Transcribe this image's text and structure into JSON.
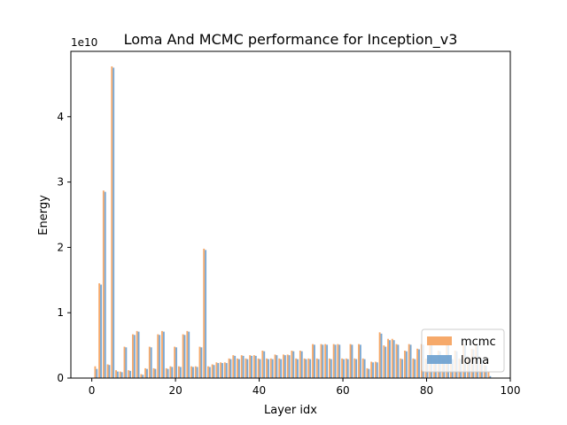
{
  "chart_data": {
    "type": "bar",
    "title": "Loma And MCMC performance for Inception_v3",
    "xlabel": "Layer idx",
    "ylabel": "Energy",
    "y_offset_label": "1e10",
    "xlim": [
      -5,
      100
    ],
    "ylim": [
      0,
      5
    ],
    "x_ticks": [
      0,
      20,
      40,
      60,
      80,
      100
    ],
    "y_ticks": [
      0,
      1,
      2,
      3,
      4
    ],
    "grid": false,
    "legend_position": "lower-right",
    "x": [
      1,
      2,
      3,
      4,
      5,
      6,
      7,
      8,
      9,
      10,
      11,
      12,
      13,
      14,
      15,
      16,
      17,
      18,
      19,
      20,
      21,
      22,
      23,
      24,
      25,
      26,
      27,
      28,
      29,
      30,
      31,
      32,
      33,
      34,
      35,
      36,
      37,
      38,
      39,
      40,
      41,
      42,
      43,
      44,
      45,
      46,
      47,
      48,
      49,
      50,
      51,
      52,
      53,
      54,
      55,
      56,
      57,
      58,
      59,
      60,
      61,
      62,
      63,
      64,
      65,
      66,
      67,
      68,
      69,
      70,
      71,
      72,
      73,
      74,
      75,
      76,
      77,
      78,
      79,
      80,
      81,
      82,
      83,
      84,
      85,
      86,
      87,
      88,
      89,
      90,
      91,
      92,
      93,
      94,
      95
    ],
    "series": [
      {
        "name": "mcmc",
        "color": "#f5a05a",
        "values": [
          0.18,
          1.45,
          2.87,
          0.21,
          4.77,
          0.12,
          0.1,
          0.48,
          0.12,
          0.67,
          0.72,
          0.06,
          0.15,
          0.48,
          0.15,
          0.67,
          0.72,
          0.15,
          0.18,
          0.48,
          0.18,
          0.67,
          0.72,
          0.18,
          0.18,
          0.48,
          1.98,
          0.18,
          0.21,
          0.24,
          0.24,
          0.24,
          0.3,
          0.35,
          0.3,
          0.35,
          0.3,
          0.35,
          0.35,
          0.3,
          0.42,
          0.3,
          0.3,
          0.36,
          0.3,
          0.36,
          0.36,
          0.42,
          0.3,
          0.42,
          0.3,
          0.3,
          0.52,
          0.3,
          0.52,
          0.52,
          0.3,
          0.52,
          0.52,
          0.3,
          0.3,
          0.52,
          0.3,
          0.52,
          0.3,
          0.15,
          0.25,
          0.25,
          0.7,
          0.5,
          0.6,
          0.6,
          0.52,
          0.3,
          0.42,
          0.52,
          0.3,
          0.45,
          0.52,
          0.3,
          0.52,
          0.3,
          0.42,
          0.3,
          0.52,
          0.3,
          0.42,
          0.3,
          0.52,
          0.3,
          0.45,
          0.52,
          0.3,
          0.2,
          0.1
        ]
      },
      {
        "name": "loma",
        "color": "#6a9fcf",
        "values": [
          0.14,
          1.43,
          2.85,
          0.2,
          4.75,
          0.1,
          0.09,
          0.47,
          0.11,
          0.66,
          0.71,
          0.05,
          0.14,
          0.47,
          0.14,
          0.66,
          0.71,
          0.14,
          0.17,
          0.47,
          0.17,
          0.66,
          0.71,
          0.17,
          0.17,
          0.47,
          1.96,
          0.17,
          0.2,
          0.23,
          0.23,
          0.23,
          0.29,
          0.34,
          0.29,
          0.34,
          0.29,
          0.34,
          0.34,
          0.29,
          0.41,
          0.29,
          0.29,
          0.35,
          0.29,
          0.35,
          0.35,
          0.41,
          0.29,
          0.41,
          0.29,
          0.29,
          0.51,
          0.29,
          0.51,
          0.51,
          0.29,
          0.51,
          0.51,
          0.29,
          0.29,
          0.51,
          0.29,
          0.51,
          0.29,
          0.14,
          0.24,
          0.24,
          0.68,
          0.48,
          0.58,
          0.58,
          0.51,
          0.29,
          0.41,
          0.51,
          0.29,
          0.44,
          0.51,
          0.29,
          0.51,
          0.29,
          0.41,
          0.29,
          0.51,
          0.29,
          0.41,
          0.29,
          0.51,
          0.29,
          0.44,
          0.51,
          0.29,
          0.19,
          0.03
        ]
      }
    ]
  }
}
